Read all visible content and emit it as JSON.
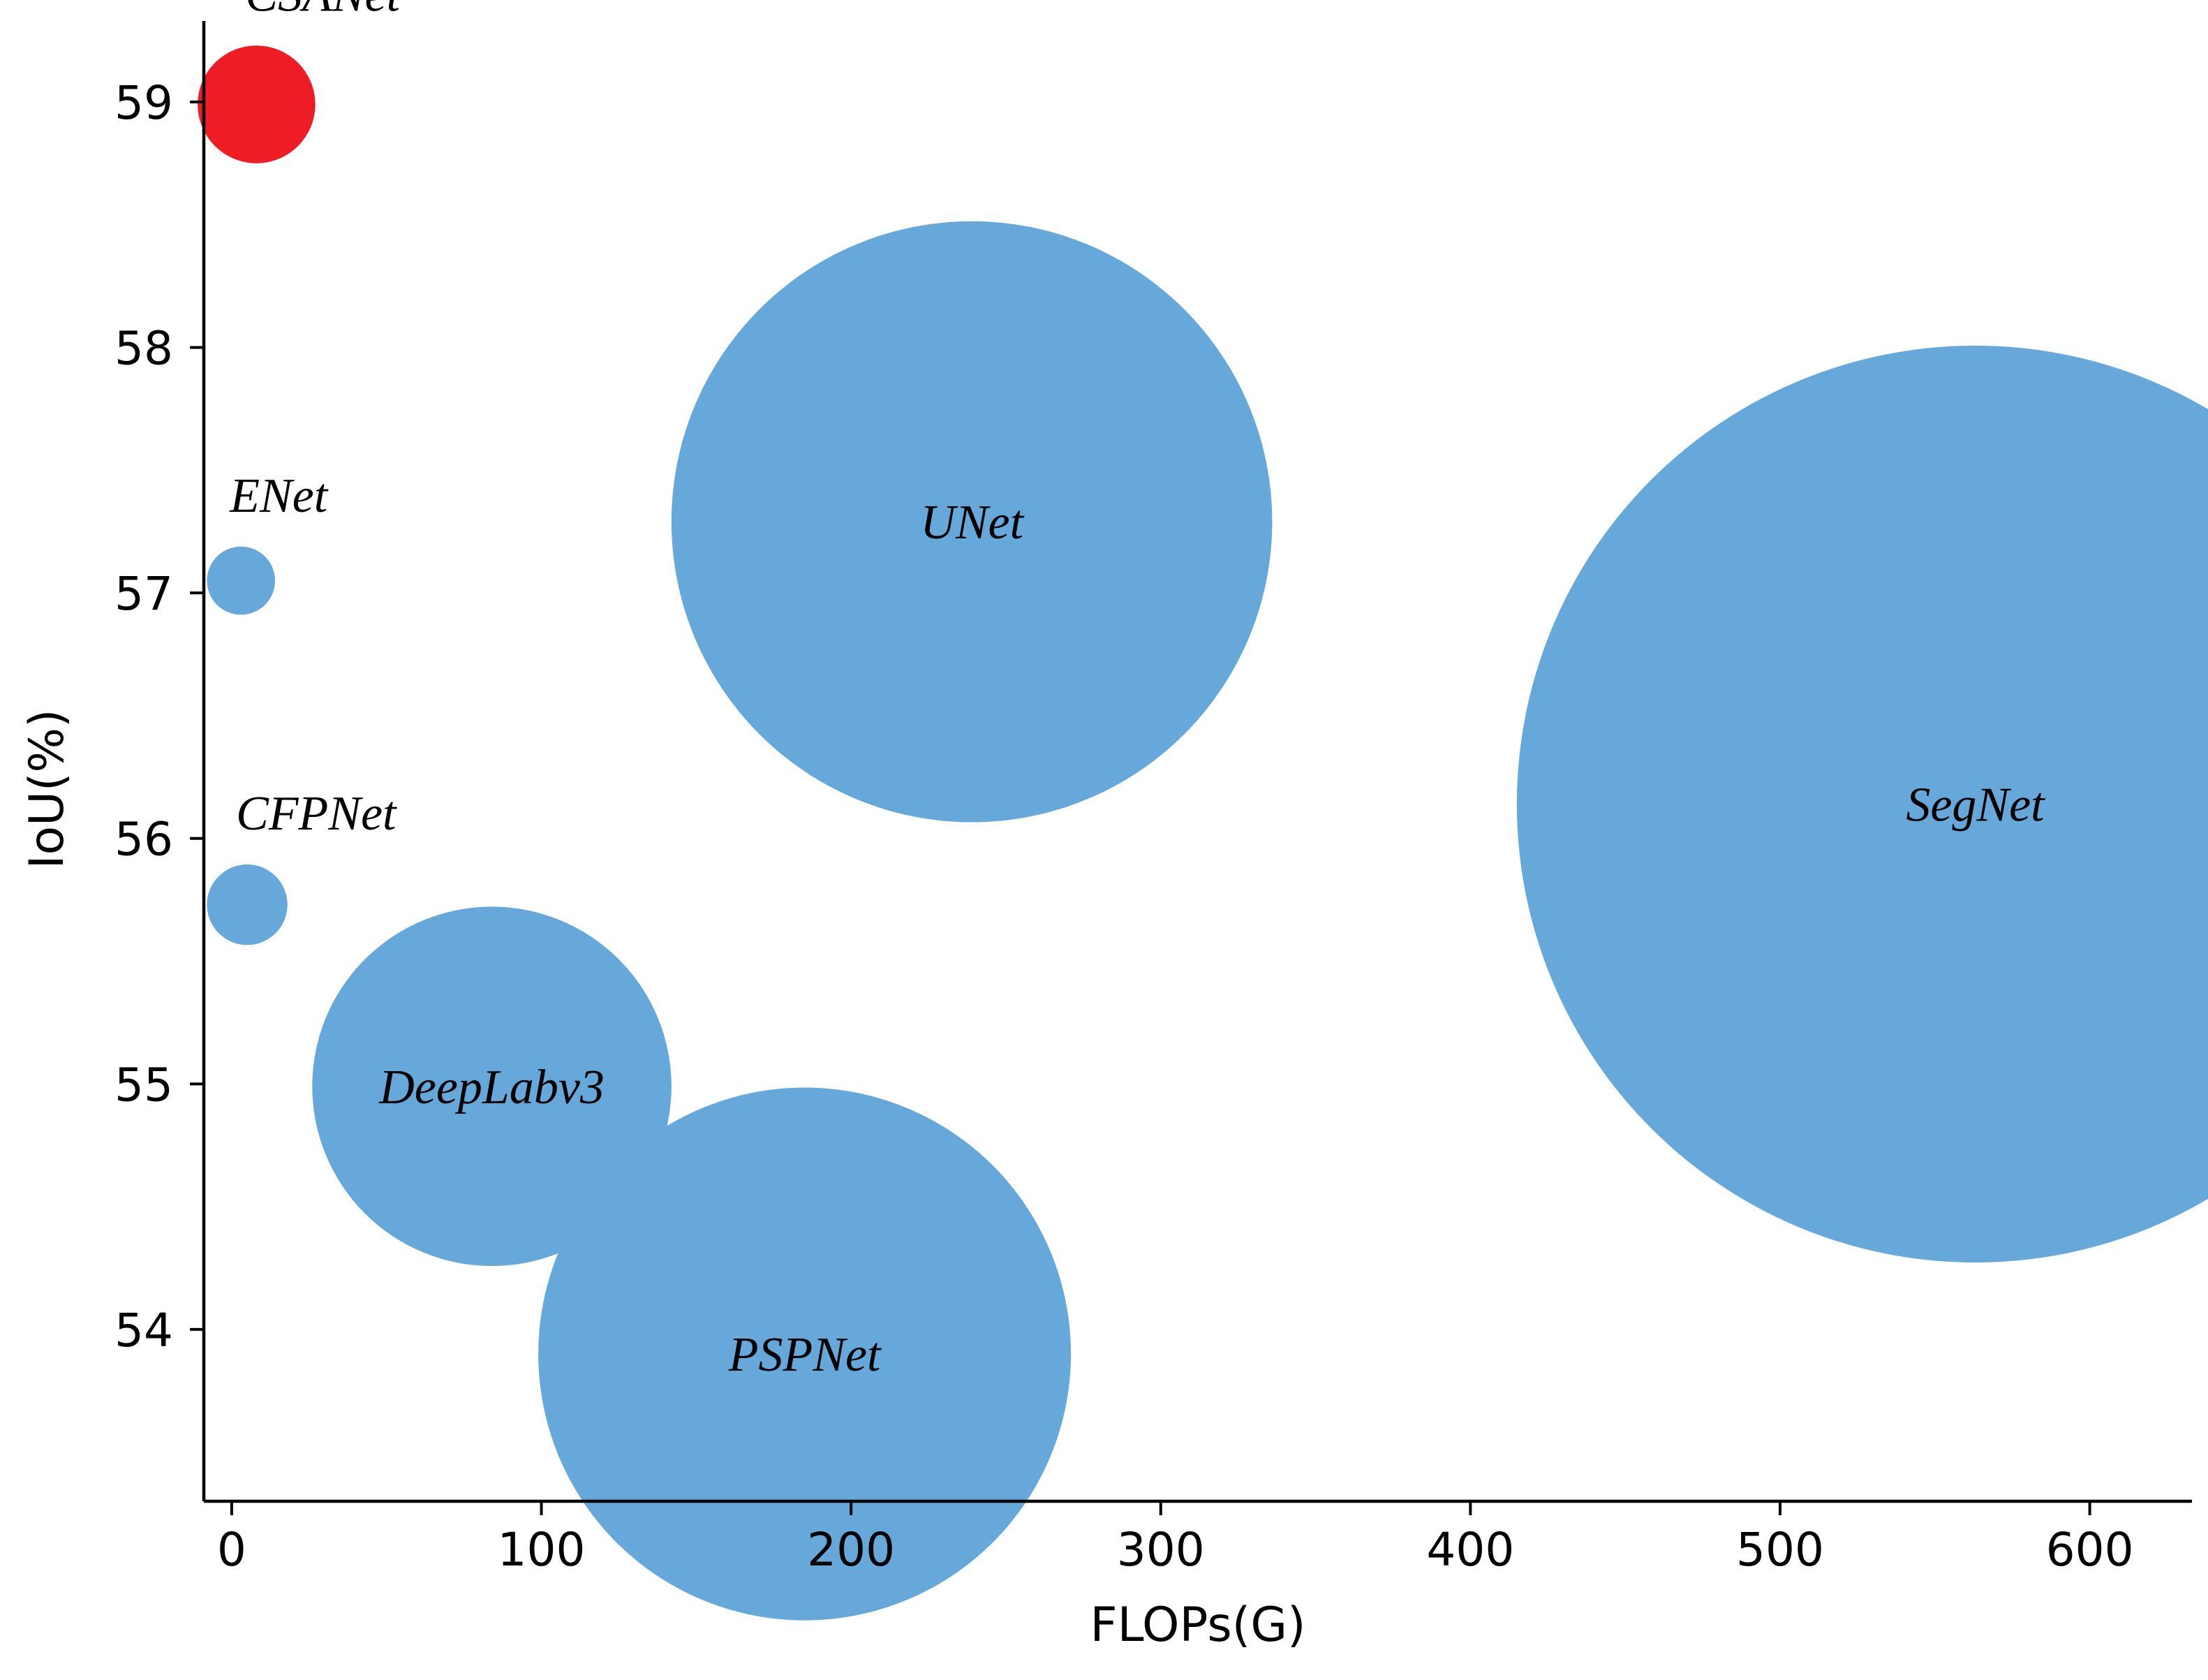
{
  "chart_data": {
    "type": "scatter",
    "title": "",
    "xlabel": "FLOPs(G)",
    "ylabel": "IoU(%)",
    "xlim": [
      -9,
      633
    ],
    "ylim": [
      53.3,
      59.33
    ],
    "xticks": [
      0,
      100,
      200,
      300,
      400,
      500,
      600
    ],
    "yticks": [
      54,
      55,
      56,
      57,
      58,
      59
    ],
    "grid": false,
    "legend": "none",
    "colors": {
      "highlight": "#ee1c25",
      "default": "#66a8da"
    },
    "points": [
      {
        "label": "CSANet",
        "x": 8,
        "y": 58.99,
        "size": 19,
        "color": "#ee1c25",
        "label_position": "above"
      },
      {
        "label": "ENet",
        "x": 3,
        "y": 57.05,
        "size": 11,
        "color": "#66a8da",
        "label_position": "above"
      },
      {
        "label": "CFPNet",
        "x": 5,
        "y": 55.73,
        "size": 13,
        "color": "#66a8da",
        "label_position": "above"
      },
      {
        "label": "UNet",
        "x": 239,
        "y": 57.29,
        "size": 97,
        "color": "#66a8da",
        "label_position": "center"
      },
      {
        "label": "SegNet",
        "x": 563,
        "y": 56.14,
        "size": 148,
        "color": "#66a8da",
        "label_position": "center"
      },
      {
        "label": "DeepLabv3",
        "x": 84,
        "y": 54.99,
        "size": 58,
        "color": "#66a8da",
        "label_position": "center"
      },
      {
        "label": "PSPNet",
        "x": 185,
        "y": 53.9,
        "size": 86,
        "color": "#66a8da",
        "label_position": "center"
      }
    ]
  }
}
